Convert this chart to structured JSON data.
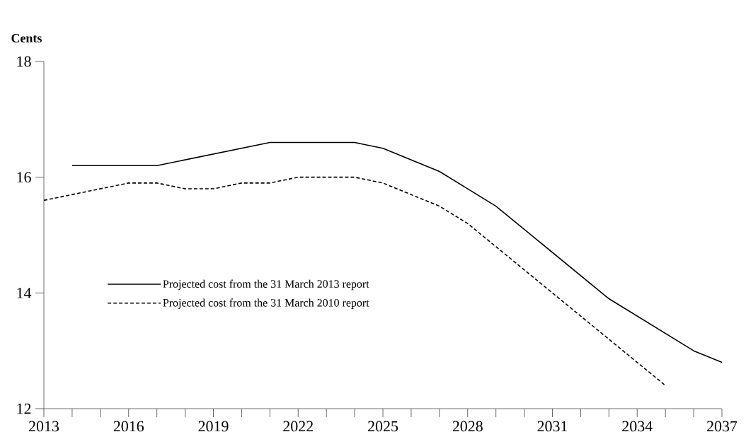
{
  "chart_data": {
    "type": "line",
    "ylabel": "Cents",
    "x": [
      2014,
      2017,
      2021,
      2024,
      2025,
      2027,
      2029,
      2033,
      2036,
      2037
    ],
    "series": [
      {
        "name": "Projected cost from the 31 March 2013 report",
        "color": "#000000",
        "line_style": "solid",
        "values": [
          16.2,
          16.2,
          16.6,
          16.6,
          16.5,
          16.1,
          15.5,
          13.9,
          13.0,
          12.8
        ]
      },
      {
        "name": "Projected cost from the 31 March 2010 report",
        "color": "#000000",
        "line_style": "dashed",
        "x": [
          2013,
          2016,
          2017,
          2018,
          2019,
          2020,
          2021,
          2022,
          2024,
          2025,
          2027,
          2028,
          2035
        ],
        "values": [
          15.6,
          15.9,
          15.9,
          15.8,
          15.8,
          15.9,
          15.9,
          16.0,
          16.0,
          15.9,
          15.5,
          15.2,
          12.4
        ]
      }
    ],
    "xlim": [
      2013,
      2037
    ],
    "ylim": [
      12,
      18
    ],
    "xticks": [
      2013,
      {
        "value": 2014,
        "label": null
      },
      {
        "value": 2015,
        "label": null
      },
      2016,
      {
        "value": 2017,
        "label": null
      },
      {
        "value": 2018,
        "label": null
      },
      2019,
      {
        "value": 2020,
        "label": null
      },
      {
        "value": 2021,
        "label": null
      },
      2022,
      {
        "value": 2023,
        "label": null
      },
      {
        "value": 2024,
        "label": null
      },
      2025,
      {
        "value": 2026,
        "label": null
      },
      {
        "value": 2027,
        "label": null
      },
      2028,
      {
        "value": 2029,
        "label": null
      },
      {
        "value": 2030,
        "label": null
      },
      2031,
      {
        "value": 2032,
        "label": null
      },
      {
        "value": 2033,
        "label": null
      },
      2034,
      {
        "value": 2035,
        "label": null
      },
      {
        "value": 2036,
        "label": null
      },
      2037
    ],
    "yticks": [
      12,
      14,
      16,
      18
    ],
    "grid": false,
    "legend": "bottom left",
    "marker": "none"
  }
}
